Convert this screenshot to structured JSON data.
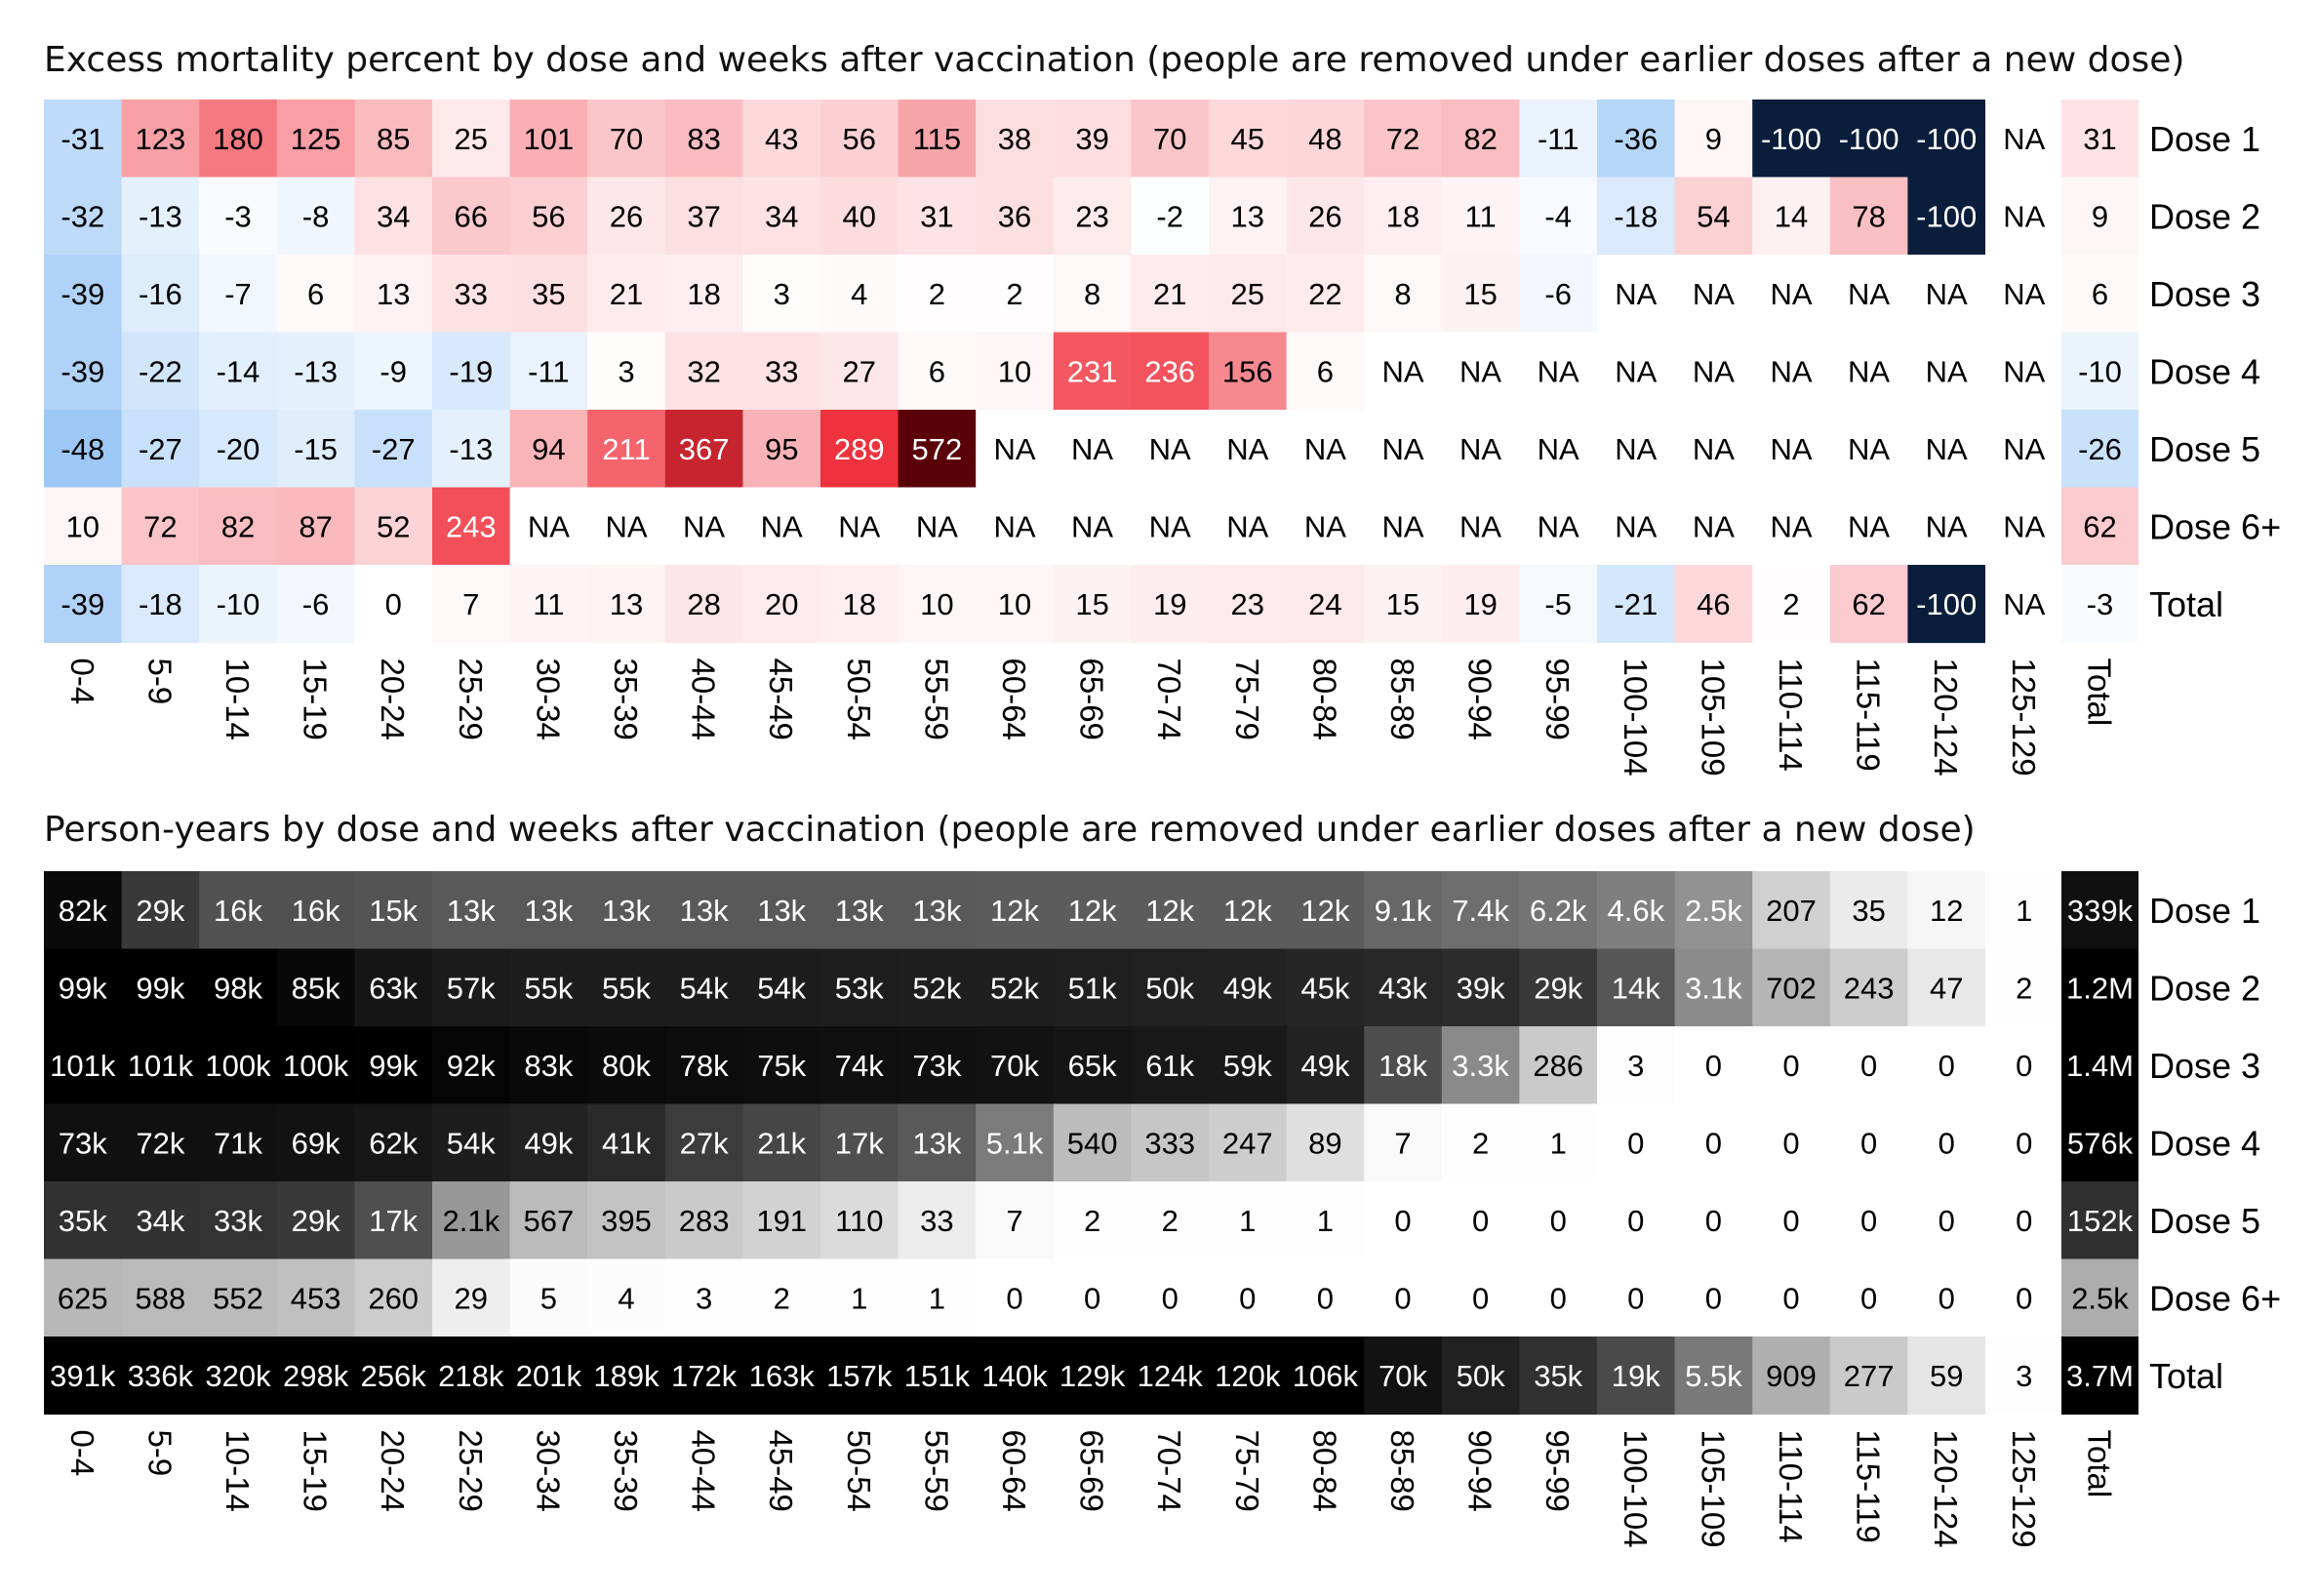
{
  "chart_data": [
    {
      "type": "heatmap",
      "title": "Excess mortality percent by dose and weeks after vaccination (people are removed under earlier doses after a new dose)",
      "xlabel": "",
      "ylabel": "",
      "color_scale": {
        "negative": "#0a1e3c",
        "zero": "#ffffff",
        "positive": "#5a0008",
        "na": "#ffffff"
      },
      "columns": [
        "0-4",
        "5-9",
        "10-14",
        "15-19",
        "20-24",
        "25-29",
        "30-34",
        "35-39",
        "40-44",
        "45-49",
        "50-54",
        "55-59",
        "60-64",
        "65-69",
        "70-74",
        "75-79",
        "80-84",
        "85-89",
        "90-94",
        "95-99",
        "100-104",
        "105-109",
        "110-114",
        "115-119",
        "120-124",
        "125-129"
      ],
      "total_label": "Total",
      "rows": [
        {
          "name": "Dose 1",
          "values": [
            "-31",
            "123",
            "180",
            "125",
            "85",
            "25",
            "101",
            "70",
            "83",
            "43",
            "56",
            "115",
            "38",
            "39",
            "70",
            "45",
            "48",
            "72",
            "82",
            "-11",
            "-36",
            "9",
            "-100",
            "-100",
            "-100",
            "NA"
          ],
          "total": "31"
        },
        {
          "name": "Dose 2",
          "values": [
            "-32",
            "-13",
            "-3",
            "-8",
            "34",
            "66",
            "56",
            "26",
            "37",
            "34",
            "40",
            "31",
            "36",
            "23",
            "-2",
            "13",
            "26",
            "18",
            "11",
            "-4",
            "-18",
            "54",
            "14",
            "78",
            "-100",
            "NA"
          ],
          "total": "9"
        },
        {
          "name": "Dose 3",
          "values": [
            "-39",
            "-16",
            "-7",
            "6",
            "13",
            "33",
            "35",
            "21",
            "18",
            "3",
            "4",
            "2",
            "2",
            "8",
            "21",
            "25",
            "22",
            "8",
            "15",
            "-6",
            "NA",
            "NA",
            "NA",
            "NA",
            "NA",
            "NA"
          ],
          "total": "6"
        },
        {
          "name": "Dose 4",
          "values": [
            "-39",
            "-22",
            "-14",
            "-13",
            "-9",
            "-19",
            "-11",
            "3",
            "32",
            "33",
            "27",
            "6",
            "10",
            "231",
            "236",
            "156",
            "6",
            "NA",
            "NA",
            "NA",
            "NA",
            "NA",
            "NA",
            "NA",
            "NA",
            "NA"
          ],
          "total": "-10"
        },
        {
          "name": "Dose 5",
          "values": [
            "-48",
            "-27",
            "-20",
            "-15",
            "-27",
            "-13",
            "94",
            "211",
            "367",
            "95",
            "289",
            "572",
            "NA",
            "NA",
            "NA",
            "NA",
            "NA",
            "NA",
            "NA",
            "NA",
            "NA",
            "NA",
            "NA",
            "NA",
            "NA",
            "NA"
          ],
          "total": "-26"
        },
        {
          "name": "Dose 6+",
          "values": [
            "10",
            "72",
            "82",
            "87",
            "52",
            "243",
            "NA",
            "NA",
            "NA",
            "NA",
            "NA",
            "NA",
            "NA",
            "NA",
            "NA",
            "NA",
            "NA",
            "NA",
            "NA",
            "NA",
            "NA",
            "NA",
            "NA",
            "NA",
            "NA",
            "NA"
          ],
          "total": "62"
        },
        {
          "name": "Total",
          "values": [
            "-39",
            "-18",
            "-10",
            "-6",
            "0",
            "7",
            "11",
            "13",
            "28",
            "20",
            "18",
            "10",
            "10",
            "15",
            "19",
            "23",
            "24",
            "15",
            "19",
            "-5",
            "-21",
            "46",
            "2",
            "62",
            "-100",
            "NA"
          ],
          "total": "-3"
        }
      ]
    },
    {
      "type": "heatmap",
      "title": "Person-years by dose and weeks after vaccination (people are removed under earlier doses after a new dose)",
      "xlabel": "",
      "ylabel": "",
      "color_scale": {
        "low": "#ffffff",
        "high": "#000000",
        "scale": "log"
      },
      "columns": [
        "0-4",
        "5-9",
        "10-14",
        "15-19",
        "20-24",
        "25-29",
        "30-34",
        "35-39",
        "40-44",
        "45-49",
        "50-54",
        "55-59",
        "60-64",
        "65-69",
        "70-74",
        "75-79",
        "80-84",
        "85-89",
        "90-94",
        "95-99",
        "100-104",
        "105-109",
        "110-114",
        "115-119",
        "120-124",
        "125-129"
      ],
      "total_label": "Total",
      "rows": [
        {
          "name": "Dose 1",
          "labels": [
            "82k",
            "29k",
            "16k",
            "16k",
            "15k",
            "13k",
            "13k",
            "13k",
            "13k",
            "13k",
            "13k",
            "13k",
            "12k",
            "12k",
            "12k",
            "12k",
            "12k",
            "9.1k",
            "7.4k",
            "6.2k",
            "4.6k",
            "2.5k",
            "207",
            "35",
            "12",
            "1"
          ],
          "values": [
            82000,
            29000,
            16000,
            16000,
            15000,
            13000,
            13000,
            13000,
            13000,
            13000,
            13000,
            13000,
            12000,
            12000,
            12000,
            12000,
            12000,
            9100,
            7400,
            6200,
            4600,
            2500,
            207,
            35,
            12,
            1
          ],
          "total_label": "339k",
          "total": 339000
        },
        {
          "name": "Dose 2",
          "labels": [
            "99k",
            "99k",
            "98k",
            "85k",
            "63k",
            "57k",
            "55k",
            "55k",
            "54k",
            "54k",
            "53k",
            "52k",
            "52k",
            "51k",
            "50k",
            "49k",
            "45k",
            "43k",
            "39k",
            "29k",
            "14k",
            "3.1k",
            "702",
            "243",
            "47",
            "2"
          ],
          "values": [
            99000,
            99000,
            98000,
            85000,
            63000,
            57000,
            55000,
            55000,
            54000,
            54000,
            53000,
            52000,
            52000,
            51000,
            50000,
            49000,
            45000,
            43000,
            39000,
            29000,
            14000,
            3100,
            702,
            243,
            47,
            2
          ],
          "total_label": "1.2M",
          "total": 1200000
        },
        {
          "name": "Dose 3",
          "labels": [
            "101k",
            "101k",
            "100k",
            "100k",
            "99k",
            "92k",
            "83k",
            "80k",
            "78k",
            "75k",
            "74k",
            "73k",
            "70k",
            "65k",
            "61k",
            "59k",
            "49k",
            "18k",
            "3.3k",
            "286",
            "3",
            "0",
            "0",
            "0",
            "0",
            "0"
          ],
          "values": [
            101000,
            101000,
            100000,
            100000,
            99000,
            92000,
            83000,
            80000,
            78000,
            75000,
            74000,
            73000,
            70000,
            65000,
            61000,
            59000,
            49000,
            18000,
            3300,
            286,
            3,
            0,
            0,
            0,
            0,
            0
          ],
          "total_label": "1.4M",
          "total": 1400000
        },
        {
          "name": "Dose 4",
          "labels": [
            "73k",
            "72k",
            "71k",
            "69k",
            "62k",
            "54k",
            "49k",
            "41k",
            "27k",
            "21k",
            "17k",
            "13k",
            "5.1k",
            "540",
            "333",
            "247",
            "89",
            "7",
            "2",
            "1",
            "0",
            "0",
            "0",
            "0",
            "0",
            "0"
          ],
          "values": [
            73000,
            72000,
            71000,
            69000,
            62000,
            54000,
            49000,
            41000,
            27000,
            21000,
            17000,
            13000,
            5100,
            540,
            333,
            247,
            89,
            7,
            2,
            1,
            0,
            0,
            0,
            0,
            0,
            0
          ],
          "total_label": "576k",
          "total": 576000
        },
        {
          "name": "Dose 5",
          "labels": [
            "35k",
            "34k",
            "33k",
            "29k",
            "17k",
            "2.1k",
            "567",
            "395",
            "283",
            "191",
            "110",
            "33",
            "7",
            "2",
            "2",
            "1",
            "1",
            "0",
            "0",
            "0",
            "0",
            "0",
            "0",
            "0",
            "0",
            "0"
          ],
          "values": [
            35000,
            34000,
            33000,
            29000,
            17000,
            2100,
            567,
            395,
            283,
            191,
            110,
            33,
            7,
            2,
            2,
            1,
            1,
            0,
            0,
            0,
            0,
            0,
            0,
            0,
            0,
            0
          ],
          "total_label": "152k",
          "total": 152000
        },
        {
          "name": "Dose 6+",
          "labels": [
            "625",
            "588",
            "552",
            "453",
            "260",
            "29",
            "5",
            "4",
            "3",
            "2",
            "1",
            "1",
            "0",
            "0",
            "0",
            "0",
            "0",
            "0",
            "0",
            "0",
            "0",
            "0",
            "0",
            "0",
            "0",
            "0"
          ],
          "values": [
            625,
            588,
            552,
            453,
            260,
            29,
            5,
            4,
            3,
            2,
            1,
            1,
            0,
            0,
            0,
            0,
            0,
            0,
            0,
            0,
            0,
            0,
            0,
            0,
            0,
            0
          ],
          "total_label": "2.5k",
          "total": 2500
        },
        {
          "name": "Total",
          "labels": [
            "391k",
            "336k",
            "320k",
            "298k",
            "256k",
            "218k",
            "201k",
            "189k",
            "172k",
            "163k",
            "157k",
            "151k",
            "140k",
            "129k",
            "124k",
            "120k",
            "106k",
            "70k",
            "50k",
            "35k",
            "19k",
            "5.5k",
            "909",
            "277",
            "59",
            "3"
          ],
          "values": [
            391000,
            336000,
            320000,
            298000,
            256000,
            218000,
            201000,
            189000,
            172000,
            163000,
            157000,
            151000,
            140000,
            129000,
            124000,
            120000,
            106000,
            70000,
            50000,
            35000,
            19000,
            5500,
            909,
            277,
            59,
            3
          ],
          "total_label": "3.7M",
          "total": 3700000
        }
      ]
    }
  ]
}
